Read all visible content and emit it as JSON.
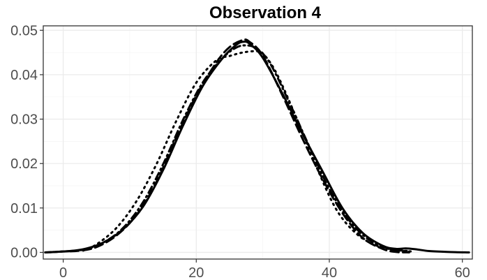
{
  "chart_data": {
    "type": "line",
    "title": "Observation 4",
    "xlabel": "",
    "ylabel": "",
    "xlim": [
      -3,
      61.5
    ],
    "ylim": [
      -0.0015,
      0.051
    ],
    "x_ticks": [
      0,
      20,
      40,
      60
    ],
    "x_tick_labels": [
      "0",
      "20",
      "40",
      "60"
    ],
    "y_ticks": [
      0,
      0.01,
      0.02,
      0.03,
      0.04,
      0.05
    ],
    "y_tick_labels": [
      "0.00",
      "0.01",
      "0.02",
      "0.03",
      "0.04",
      "0.05"
    ],
    "grid": true,
    "legend": "none",
    "series": [
      {
        "line_style": "solid",
        "color": "#000000",
        "x": [
          -2.7,
          0,
          3,
          6,
          9,
          12,
          15,
          18,
          21,
          24,
          26,
          27,
          28,
          30,
          33,
          36,
          39,
          42,
          45,
          48,
          50,
          51.5,
          53,
          55,
          58,
          61
        ],
        "y": [
          0.0,
          0.0002,
          0.0007,
          0.0022,
          0.0052,
          0.0103,
          0.0185,
          0.0285,
          0.0375,
          0.0438,
          0.0467,
          0.0474,
          0.047,
          0.0438,
          0.0356,
          0.0266,
          0.0182,
          0.0099,
          0.0044,
          0.0015,
          0.0008,
          0.0009,
          0.0007,
          0.0003,
          0.0001,
          0.0
        ]
      },
      {
        "line_style": "dashed",
        "color": "#000000",
        "x": [
          -2.7,
          0,
          2.5,
          5,
          8,
          11,
          14,
          17,
          20,
          23,
          25,
          27,
          28,
          30,
          33,
          36,
          39,
          42,
          45,
          48,
          50,
          52
        ],
        "y": [
          0.0,
          0.0002,
          0.0004,
          0.0012,
          0.0038,
          0.0084,
          0.0158,
          0.0259,
          0.0353,
          0.0427,
          0.0462,
          0.0478,
          0.0474,
          0.0443,
          0.0352,
          0.0255,
          0.0165,
          0.0088,
          0.0033,
          0.0008,
          0.0001,
          0.0
        ]
      },
      {
        "line_style": "dotted",
        "color": "#000000",
        "x": [
          3,
          5,
          8,
          11,
          14,
          17,
          20,
          23,
          25,
          27,
          29,
          30,
          32,
          35,
          38,
          41,
          44,
          47,
          50,
          52.5
        ],
        "y": [
          0.0004,
          0.0018,
          0.0055,
          0.0115,
          0.0198,
          0.0296,
          0.0382,
          0.0432,
          0.0442,
          0.045,
          0.0453,
          0.0448,
          0.0405,
          0.0305,
          0.0195,
          0.0098,
          0.0043,
          0.0016,
          0.0005,
          0.0002
        ]
      },
      {
        "line_style": "dotdash",
        "color": "#000000",
        "x": [
          -2.7,
          0,
          3,
          6,
          9,
          12,
          15,
          18,
          21,
          24,
          26,
          27.5,
          29,
          31,
          34,
          37,
          40,
          43,
          46,
          49,
          51,
          52
        ],
        "y": [
          0.0,
          0.0002,
          0.0006,
          0.0022,
          0.0055,
          0.0113,
          0.0198,
          0.0298,
          0.0383,
          0.0438,
          0.0461,
          0.0466,
          0.0459,
          0.0428,
          0.0337,
          0.0238,
          0.0143,
          0.0072,
          0.0028,
          0.0008,
          0.0004,
          0.0003
        ]
      }
    ]
  }
}
